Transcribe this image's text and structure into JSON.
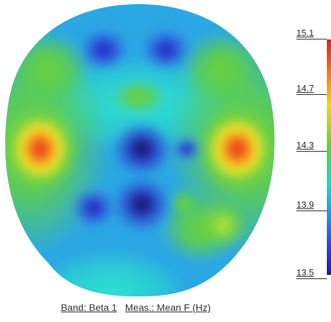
{
  "caption": {
    "band": "Band: Beta 1",
    "meas": "Meas.: Mean F (Hz)"
  },
  "scale": {
    "ticks": [
      "15.1",
      "14.7",
      "14.3",
      "13.9",
      "13.5"
    ],
    "colors": {
      "max": "#e02020",
      "high": "#f47a18",
      "mid_high": "#f5d61a",
      "mid": "#5fcf39",
      "mid_low": "#1ed6c8",
      "low": "#2d8ae0",
      "min": "#1d1c9a"
    }
  }
}
